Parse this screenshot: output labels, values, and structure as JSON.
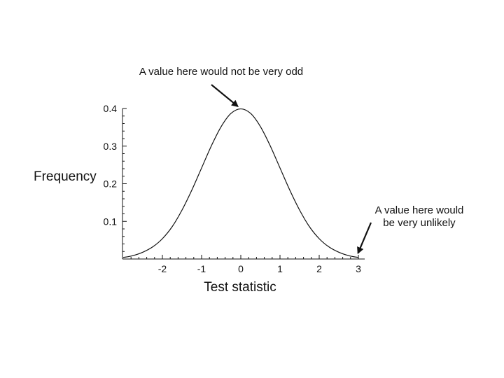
{
  "chart_data": {
    "type": "line",
    "title": "",
    "xlabel": "Test statistic",
    "ylabel": "Frequency",
    "xlim": [
      -3,
      3.1
    ],
    "ylim": [
      0,
      0.4
    ],
    "xticks": [
      -2,
      -1,
      0,
      1,
      2,
      3
    ],
    "yticks": [
      0.1,
      0.2,
      0.3,
      0.4
    ],
    "xtick_labels": [
      "-2",
      "-1",
      "0",
      "1",
      "2",
      "3"
    ],
    "ytick_labels": [
      "0.1",
      "0.2",
      "0.3",
      "0.4"
    ],
    "series": [
      {
        "x": [
          -3.0,
          -2.75,
          -2.5,
          -2.25,
          -2.0,
          -1.75,
          -1.5,
          -1.25,
          -1.0,
          -0.75,
          -0.5,
          -0.25,
          0.0,
          0.25,
          0.5,
          0.75,
          1.0,
          1.25,
          1.5,
          1.75,
          2.0,
          2.25,
          2.5,
          2.75,
          3.0
        ],
        "y": [
          0.004,
          0.009,
          0.018,
          0.032,
          0.054,
          0.086,
          0.13,
          0.183,
          0.242,
          0.301,
          0.352,
          0.387,
          0.399,
          0.387,
          0.352,
          0.301,
          0.242,
          0.183,
          0.13,
          0.086,
          0.054,
          0.032,
          0.018,
          0.009,
          0.004
        ]
      }
    ],
    "grid": false,
    "annotations": [
      {
        "lines": [
          "A value here would not be very odd"
        ],
        "target_x": 0.0,
        "target_y": 0.399
      },
      {
        "lines": [
          "A value here would",
          "be very unlikely"
        ],
        "target_x": 2.95,
        "target_y": 0.006
      }
    ]
  }
}
